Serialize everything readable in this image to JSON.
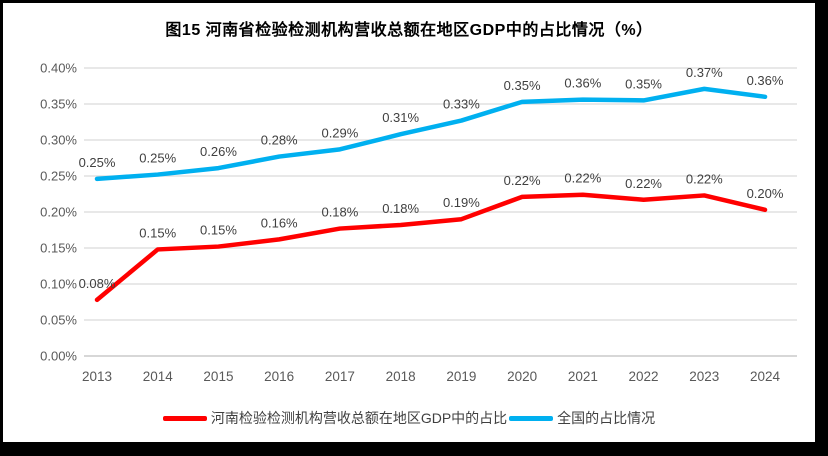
{
  "window": {
    "background_color": "#FFFFFF",
    "frame_color": "#000000"
  },
  "chart_data": {
    "type": "line",
    "title": "图15  河南省检验检测机构营收总额在地区GDP中的占比情况（%）",
    "categories": [
      "2013",
      "2014",
      "2015",
      "2016",
      "2017",
      "2018",
      "2019",
      "2020",
      "2021",
      "2022",
      "2023",
      "2024"
    ],
    "series": [
      {
        "key": "henan",
        "name": "河南检验检测机构营收总额在地区GDP中的占比",
        "color": "#FF0000",
        "values": [
          0.078,
          0.148,
          0.152,
          0.162,
          0.177,
          0.182,
          0.19,
          0.221,
          0.224,
          0.217,
          0.223,
          0.203
        ],
        "labels": [
          "0.08%",
          "0.15%",
          "0.15%",
          "0.16%",
          "0.18%",
          "0.18%",
          "0.19%",
          "0.22%",
          "0.22%",
          "0.22%",
          "0.22%",
          "0.20%"
        ]
      },
      {
        "key": "national",
        "name": "全国的占比情况",
        "color": "#00B0F0",
        "values": [
          0.246,
          0.252,
          0.261,
          0.277,
          0.287,
          0.308,
          0.327,
          0.353,
          0.356,
          0.355,
          0.371,
          0.36
        ],
        "labels": [
          "0.25%",
          "0.25%",
          "0.26%",
          "0.28%",
          "0.29%",
          "0.31%",
          "0.33%",
          "0.35%",
          "0.36%",
          "0.35%",
          "0.37%",
          "0.36%"
        ]
      }
    ],
    "y_axis": {
      "ticks": [
        "0.40%",
        "0.35%",
        "0.30%",
        "0.25%",
        "0.20%",
        "0.15%",
        "0.10%",
        "0.05%",
        "0.00%"
      ],
      "min": 0,
      "max": 0.4,
      "step": 0.05
    },
    "x_axis_label": "",
    "y_axis_label": "",
    "grid": true,
    "legend_position": "bottom",
    "colors": {
      "gridline": "#D9D9D9",
      "baseline": "#BFBFBF",
      "axis_label": "#595959",
      "data_label": "#404040"
    }
  }
}
